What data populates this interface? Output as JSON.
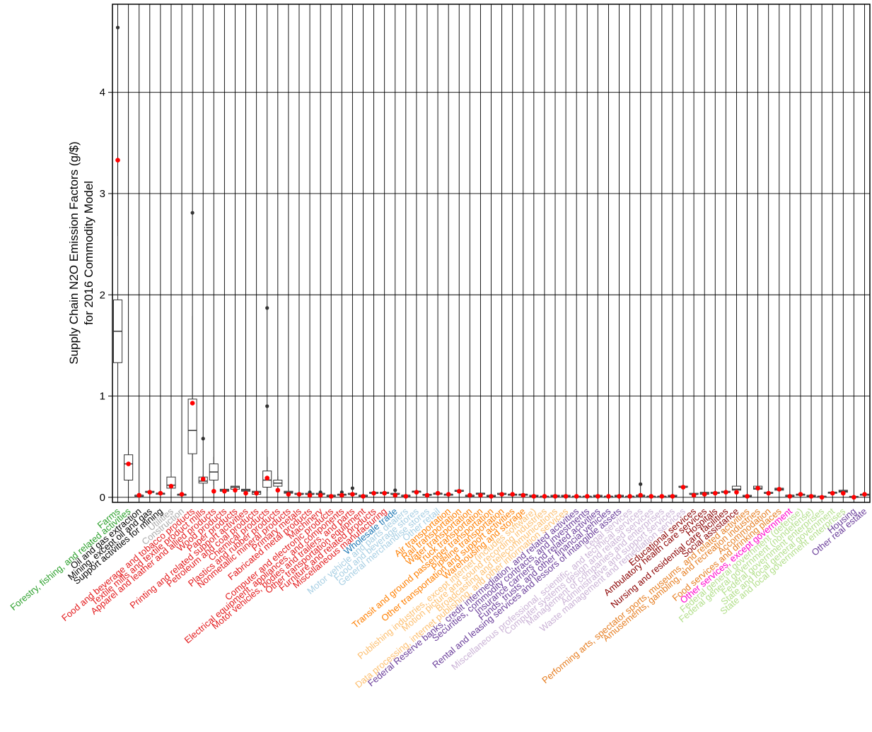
{
  "chart_data": {
    "type": "box",
    "title": "",
    "ylabel_line1": "Supply Chain N2O Emission Factors (g/$)",
    "ylabel_line2": "for 2016 Commodity Model",
    "ylim": [
      -0.05,
      4.87
    ],
    "yticks": [
      0,
      1,
      2,
      3,
      4
    ],
    "grid": true,
    "categories": [
      {
        "label": "Farms",
        "color": "#2ca02c",
        "box": [
          0.57,
          1.33,
          1.64,
          1.95,
          2.58
        ],
        "mean": 3.33,
        "outliers": [
          4.64
        ]
      },
      {
        "label": "Forestry, fishing, and related activities",
        "color": "#2ca02c",
        "box": [
          0.17,
          0.17,
          0.33,
          0.42,
          0.42
        ],
        "mean": 0.33,
        "outliers": []
      },
      {
        "label": "Oil and gas extraction",
        "color": "#000000",
        "box": [
          0.01,
          0.01,
          0.02,
          0.02,
          0.02
        ],
        "mean": 0.02,
        "outliers": []
      },
      {
        "label": "Mining, except oil and gas",
        "color": "#000000",
        "box": [
          0.04,
          0.05,
          0.05,
          0.06,
          0.06
        ],
        "mean": 0.05,
        "outliers": []
      },
      {
        "label": "Support activities for mining",
        "color": "#000000",
        "box": [
          0.02,
          0.03,
          0.04,
          0.04,
          0.05
        ],
        "mean": 0.04,
        "outliers": []
      },
      {
        "label": "Utilities",
        "color": "#aaaaaa",
        "box": [
          0.06,
          0.09,
          0.12,
          0.2,
          0.25
        ],
        "mean": 0.11,
        "outliers": []
      },
      {
        "label": "Construction",
        "color": "#aaaaaa",
        "box": [
          0.02,
          0.02,
          0.03,
          0.03,
          0.04
        ],
        "mean": 0.03,
        "outliers": []
      },
      {
        "label": "Food and beverage and tobacco products",
        "color": "#e31a1c",
        "box": [
          0.35,
          0.43,
          0.66,
          0.97,
          1.79
        ],
        "mean": 0.93,
        "outliers": [
          2.81
        ]
      },
      {
        "label": "Textile mills and textile product mills",
        "color": "#e31a1c",
        "box": [
          0.13,
          0.14,
          0.16,
          0.2,
          0.22
        ],
        "mean": 0.18,
        "outliers": [
          0.58
        ]
      },
      {
        "label": "Apparel and leather and allied products",
        "color": "#e31a1c",
        "box": [
          0.12,
          0.17,
          0.25,
          0.33,
          0.4
        ],
        "mean": 0.06,
        "outliers": []
      },
      {
        "label": "Wood products",
        "color": "#e31a1c",
        "box": [
          0.04,
          0.06,
          0.07,
          0.08,
          0.1
        ],
        "mean": 0.06,
        "outliers": []
      },
      {
        "label": "Paper products",
        "color": "#e31a1c",
        "box": [
          0.06,
          0.08,
          0.1,
          0.11,
          0.13
        ],
        "mean": 0.07,
        "outliers": []
      },
      {
        "label": "Printing and related support activities",
        "color": "#e31a1c",
        "box": [
          0.05,
          0.06,
          0.07,
          0.08,
          0.09
        ],
        "mean": 0.04,
        "outliers": []
      },
      {
        "label": "Petroleum and coal products",
        "color": "#e31a1c",
        "box": [
          0.02,
          0.03,
          0.05,
          0.06,
          0.08
        ],
        "mean": 0.04,
        "outliers": []
      },
      {
        "label": "Chemical products",
        "color": "#e31a1c",
        "box": [
          0.06,
          0.1,
          0.17,
          0.26,
          0.4
        ],
        "mean": 0.19,
        "outliers": [
          0.9,
          1.87
        ]
      },
      {
        "label": "Plastics and rubber products",
        "color": "#e31a1c",
        "box": [
          0.08,
          0.11,
          0.14,
          0.17,
          0.21
        ],
        "mean": 0.07,
        "outliers": []
      },
      {
        "label": "Nonmetallic mineral products",
        "color": "#e31a1c",
        "box": [
          0.02,
          0.04,
          0.05,
          0.06,
          0.08
        ],
        "mean": 0.03,
        "outliers": []
      },
      {
        "label": "Primary metals",
        "color": "#e31a1c",
        "box": [
          0.02,
          0.03,
          0.03,
          0.04,
          0.05
        ],
        "mean": 0.03,
        "outliers": []
      },
      {
        "label": "Fabricated metal products",
        "color": "#e31a1c",
        "box": [
          0.02,
          0.03,
          0.03,
          0.04,
          0.04
        ],
        "mean": 0.02,
        "outliers": [
          0.05
        ]
      },
      {
        "label": "Machinery",
        "color": "#e31a1c",
        "box": [
          0.02,
          0.03,
          0.03,
          0.04,
          0.04
        ],
        "mean": 0.02,
        "outliers": [
          0.05
        ]
      },
      {
        "label": "Computer and electronic products",
        "color": "#e31a1c",
        "box": [
          0.01,
          0.01,
          0.02,
          0.02,
          0.03
        ],
        "mean": 0.01,
        "outliers": []
      },
      {
        "label": "Electrical equipment, appliances, and components",
        "color": "#e31a1c",
        "box": [
          0.02,
          0.02,
          0.03,
          0.03,
          0.04
        ],
        "mean": 0.02,
        "outliers": [
          0.05
        ]
      },
      {
        "label": "Motor vehicles, bodies and trailers, and parts",
        "color": "#e31a1c",
        "box": [
          0.02,
          0.03,
          0.03,
          0.04,
          0.05
        ],
        "mean": 0.03,
        "outliers": [
          0.09
        ]
      },
      {
        "label": "Other transportation equipment",
        "color": "#e31a1c",
        "box": [
          0.01,
          0.02,
          0.02,
          0.02,
          0.03
        ],
        "mean": 0.01,
        "outliers": []
      },
      {
        "label": "Furniture and related products",
        "color": "#e31a1c",
        "box": [
          0.03,
          0.04,
          0.04,
          0.05,
          0.05
        ],
        "mean": 0.04,
        "outliers": []
      },
      {
        "label": "Miscellaneous manufacturing",
        "color": "#e31a1c",
        "box": [
          0.03,
          0.04,
          0.04,
          0.05,
          0.05
        ],
        "mean": 0.04,
        "outliers": []
      },
      {
        "label": "Wholesale trade",
        "color": "#1f78b4",
        "box": [
          0.02,
          0.03,
          0.03,
          0.04,
          0.04
        ],
        "mean": 0.02,
        "outliers": [
          0.07
        ]
      },
      {
        "label": "Motor vehicle and parts dealers",
        "color": "#a6cee3",
        "box": [
          0.01,
          0.01,
          0.02,
          0.02,
          0.02
        ],
        "mean": 0.01,
        "outliers": []
      },
      {
        "label": "Food and beverage stores",
        "color": "#a6cee3",
        "box": [
          0.05,
          0.05,
          0.06,
          0.06,
          0.07
        ],
        "mean": 0.05,
        "outliers": []
      },
      {
        "label": "General merchandise stores",
        "color": "#a6cee3",
        "box": [
          0.02,
          0.02,
          0.02,
          0.03,
          0.03
        ],
        "mean": 0.02,
        "outliers": []
      },
      {
        "label": "Other retail",
        "color": "#a6cee3",
        "box": [
          0.03,
          0.03,
          0.04,
          0.04,
          0.04
        ],
        "mean": 0.04,
        "outliers": []
      },
      {
        "label": "Air transportation",
        "color": "#ff7f00",
        "box": [
          0.02,
          0.02,
          0.03,
          0.03,
          0.03
        ],
        "mean": 0.03,
        "outliers": []
      },
      {
        "label": "Rail transportation",
        "color": "#ff7f00",
        "box": [
          0.05,
          0.06,
          0.06,
          0.07,
          0.07
        ],
        "mean": 0.06,
        "outliers": []
      },
      {
        "label": "Water transportation",
        "color": "#ff7f00",
        "box": [
          0.02,
          0.02,
          0.02,
          0.02,
          0.03
        ],
        "mean": 0.02,
        "outliers": []
      },
      {
        "label": "Truck transportation",
        "color": "#ff7f00",
        "box": [
          0.03,
          0.03,
          0.04,
          0.04,
          0.04
        ],
        "mean": 0.02,
        "outliers": []
      },
      {
        "label": "Transit and ground passenger transportation",
        "color": "#ff7f00",
        "box": [
          0.01,
          0.01,
          0.01,
          0.02,
          0.02
        ],
        "mean": 0.01,
        "outliers": []
      },
      {
        "label": "Pipeline transportation",
        "color": "#ff7f00",
        "box": [
          0.02,
          0.03,
          0.03,
          0.04,
          0.04
        ],
        "mean": 0.03,
        "outliers": []
      },
      {
        "label": "Other transportation and support activities",
        "color": "#ff7f00",
        "box": [
          0.02,
          0.02,
          0.03,
          0.03,
          0.03
        ],
        "mean": 0.03,
        "outliers": []
      },
      {
        "label": "Warehousing and storage",
        "color": "#ff7f00",
        "box": [
          0.02,
          0.02,
          0.03,
          0.03,
          0.04
        ],
        "mean": 0.02,
        "outliers": []
      },
      {
        "label": "Publishing industries, except internet (includes software)",
        "color": "#fdbf6f",
        "box": [
          0.01,
          0.01,
          0.01,
          0.02,
          0.02
        ],
        "mean": 0.01,
        "outliers": []
      },
      {
        "label": "Motion picture and sound recording industries",
        "color": "#fdbf6f",
        "box": [
          0.01,
          0.01,
          0.01,
          0.01,
          0.02
        ],
        "mean": 0.01,
        "outliers": []
      },
      {
        "label": "Broadcasting and telecommunications",
        "color": "#fdbf6f",
        "box": [
          0.01,
          0.01,
          0.01,
          0.02,
          0.02
        ],
        "mean": 0.01,
        "outliers": []
      },
      {
        "label": "Data processing, internet publishing, and other information services",
        "color": "#fdbf6f",
        "box": [
          0.01,
          0.01,
          0.01,
          0.02,
          0.02
        ],
        "mean": 0.01,
        "outliers": []
      },
      {
        "label": "Federal Reserve banks, credit intermediation, and related activities",
        "color": "#6a3d9a",
        "box": [
          0.01,
          0.01,
          0.01,
          0.01,
          0.02
        ],
        "mean": 0.01,
        "outliers": []
      },
      {
        "label": "Securities, commodity contracts, and investments",
        "color": "#6a3d9a",
        "box": [
          0.01,
          0.01,
          0.01,
          0.01,
          0.01
        ],
        "mean": 0.01,
        "outliers": []
      },
      {
        "label": "Insurance carriers and related activities",
        "color": "#6a3d9a",
        "box": [
          0.01,
          0.01,
          0.01,
          0.02,
          0.02
        ],
        "mean": 0.01,
        "outliers": []
      },
      {
        "label": "Funds, trusts, and other financial vehicles",
        "color": "#6a3d9a",
        "box": [
          0.01,
          0.01,
          0.01,
          0.01,
          0.02
        ],
        "mean": 0.01,
        "outliers": []
      },
      {
        "label": "Rental and leasing services and lessors of intangible assets",
        "color": "#6a3d9a",
        "box": [
          0.01,
          0.01,
          0.01,
          0.02,
          0.02
        ],
        "mean": 0.01,
        "outliers": []
      },
      {
        "label": "Legal services",
        "color": "#cab2d6",
        "box": [
          0.01,
          0.01,
          0.01,
          0.01,
          0.01
        ],
        "mean": 0.01,
        "outliers": []
      },
      {
        "label": "Miscellaneous professional, scientific, and technical services",
        "color": "#cab2d6",
        "box": [
          0.01,
          0.01,
          0.02,
          0.02,
          0.02
        ],
        "mean": 0.02,
        "outliers": [
          0.13
        ]
      },
      {
        "label": "Computer systems design and related services",
        "color": "#cab2d6",
        "box": [
          0.01,
          0.01,
          0.01,
          0.01,
          0.01
        ],
        "mean": 0.01,
        "outliers": []
      },
      {
        "label": "Management of companies and enterprises",
        "color": "#cab2d6",
        "box": [
          0.01,
          0.01,
          0.01,
          0.01,
          0.01
        ],
        "mean": 0.01,
        "outliers": []
      },
      {
        "label": "Administrative and support services",
        "color": "#cab2d6",
        "box": [
          0.01,
          0.01,
          0.01,
          0.02,
          0.02
        ],
        "mean": 0.01,
        "outliers": []
      },
      {
        "label": "Waste management and remediation services",
        "color": "#cab2d6",
        "box": [
          0.09,
          0.1,
          0.1,
          0.11,
          0.11
        ],
        "mean": 0.1,
        "outliers": []
      },
      {
        "label": "Educational services",
        "color": "#8b0000",
        "box": [
          0.02,
          0.03,
          0.03,
          0.04,
          0.04
        ],
        "mean": 0.02,
        "outliers": []
      },
      {
        "label": "Ambulatory health care services",
        "color": "#8b0000",
        "box": [
          0.02,
          0.03,
          0.04,
          0.05,
          0.05
        ],
        "mean": 0.03,
        "outliers": []
      },
      {
        "label": "Hospitals",
        "color": "#8b0000",
        "box": [
          0.03,
          0.04,
          0.04,
          0.05,
          0.05
        ],
        "mean": 0.04,
        "outliers": []
      },
      {
        "label": "Nursing and residential care facilities",
        "color": "#8b0000",
        "box": [
          0.04,
          0.05,
          0.05,
          0.06,
          0.06
        ],
        "mean": 0.05,
        "outliers": []
      },
      {
        "label": "Social assistance",
        "color": "#8b0000",
        "box": [
          0.05,
          0.07,
          0.08,
          0.11,
          0.12
        ],
        "mean": 0.05,
        "outliers": []
      },
      {
        "label": "Performing arts, spectator sports, museums, and related activities",
        "color": "#e67e22",
        "box": [
          0.01,
          0.01,
          0.01,
          0.02,
          0.02
        ],
        "mean": 0.01,
        "outliers": []
      },
      {
        "label": "Amusements, gambling, and recreation industries",
        "color": "#e67e22",
        "box": [
          0.06,
          0.08,
          0.09,
          0.11,
          0.11
        ],
        "mean": 0.09,
        "outliers": []
      },
      {
        "label": "Accommodation",
        "color": "#e67e22",
        "box": [
          0.03,
          0.04,
          0.04,
          0.05,
          0.05
        ],
        "mean": 0.04,
        "outliers": []
      },
      {
        "label": "Food services and drinking places",
        "color": "#e67e22",
        "box": [
          0.06,
          0.07,
          0.08,
          0.09,
          0.09
        ],
        "mean": 0.08,
        "outliers": []
      },
      {
        "label": "Other services, except government",
        "color": "#ff00cc",
        "box": [
          0.01,
          0.01,
          0.02,
          0.02,
          0.02
        ],
        "mean": 0.01,
        "outliers": []
      },
      {
        "label": "Federal general government (defense)",
        "color": "#b2df8a",
        "box": [
          0.02,
          0.02,
          0.03,
          0.03,
          0.03
        ],
        "mean": 0.03,
        "outliers": []
      },
      {
        "label": "Federal general government (nondefense)",
        "color": "#b2df8a",
        "box": [
          0.01,
          0.01,
          0.01,
          0.02,
          0.02
        ],
        "mean": 0.01,
        "outliers": []
      },
      {
        "label": "Federal government enterprises",
        "color": "#b2df8a",
        "box": [
          0.0,
          0.0,
          0.01,
          0.01,
          0.01
        ],
        "mean": 0.0,
        "outliers": []
      },
      {
        "label": "State and local general government",
        "color": "#b2df8a",
        "box": [
          0.03,
          0.04,
          0.05,
          0.05,
          0.06
        ],
        "mean": 0.04,
        "outliers": []
      },
      {
        "label": "State and local government enterprises",
        "color": "#b2df8a",
        "box": [
          0.04,
          0.05,
          0.06,
          0.07,
          0.08
        ],
        "mean": 0.04,
        "outliers": []
      },
      {
        "label": "Housing",
        "color": "#6a3d9a",
        "box": [
          0.0,
          0.0,
          0.0,
          0.01,
          0.01
        ],
        "mean": 0.0,
        "outliers": []
      },
      {
        "label": "Other real estate",
        "color": "#6a3d9a",
        "box": [
          0.02,
          0.02,
          0.03,
          0.03,
          0.03
        ],
        "mean": 0.03,
        "outliers": []
      }
    ]
  }
}
